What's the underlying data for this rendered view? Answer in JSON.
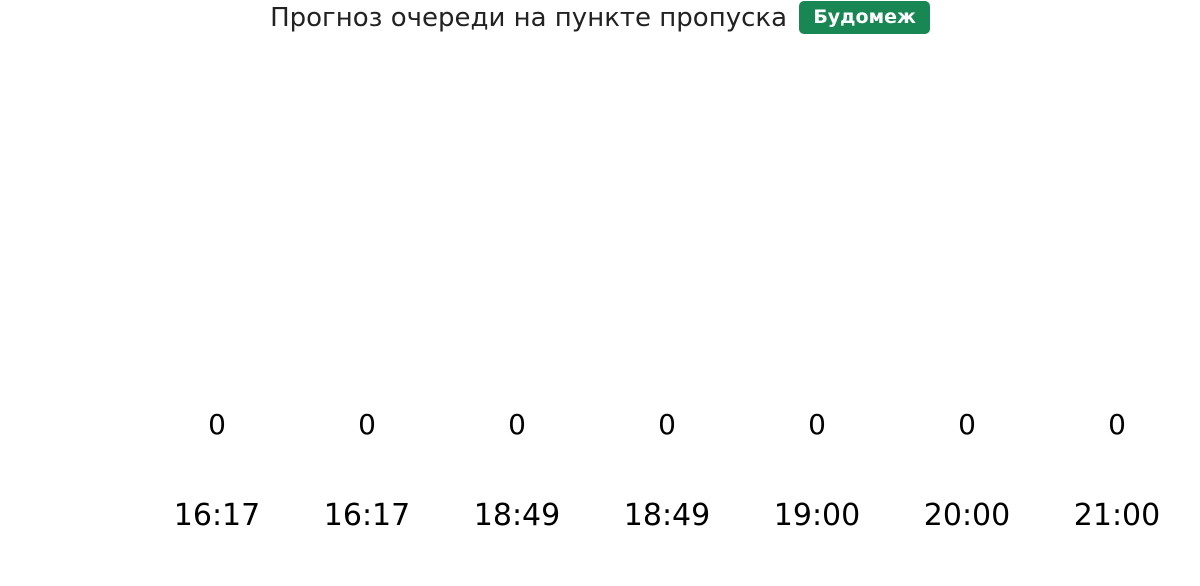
{
  "header": {
    "title": "Прогноз очереди на пункте пропуска",
    "badge": "Будомеж",
    "badge_color": "#198754"
  },
  "chart_data": {
    "type": "bar",
    "categories": [
      "16:17",
      "16:17",
      "18:49",
      "18:49",
      "19:00",
      "20:00",
      "21:00"
    ],
    "values": [
      0,
      0,
      0,
      0,
      0,
      0,
      0
    ],
    "data_labels": [
      "0",
      "0",
      "0",
      "0",
      "0",
      "0",
      "0"
    ],
    "title": "",
    "xlabel": "",
    "ylabel": "",
    "grid": false
  }
}
